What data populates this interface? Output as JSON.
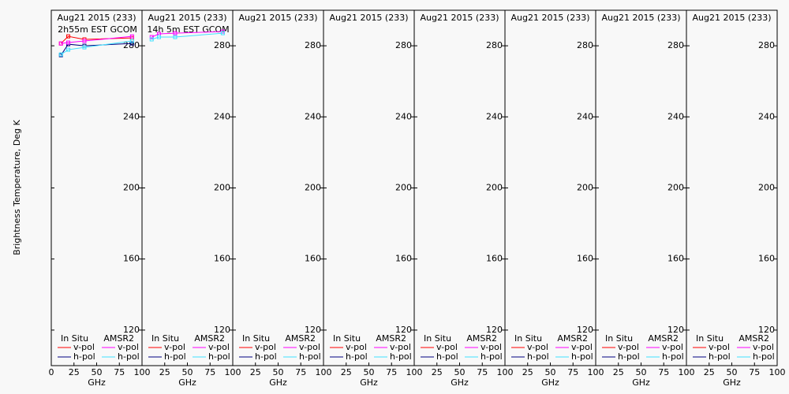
{
  "y_label": "Brightness Temperature, Deg K",
  "chart_data": [
    {
      "type": "line",
      "title": "Aug21 2015 (233)",
      "subtitle": "2h55m  EST GCOM",
      "x_label": "GHz",
      "x": [
        10.65,
        18.7,
        36.5,
        89.0
      ],
      "legend_groups": [
        "In Situ",
        "AMSR2"
      ],
      "series": [
        {
          "name": "v-pol",
          "group": 0,
          "color": "#ff0000",
          "values": [
            281.3,
            285.3,
            283.6,
            284.4
          ]
        },
        {
          "name": "h-pol",
          "group": 0,
          "color": "#000080",
          "values": [
            274.7,
            280.9,
            280.0,
            281.3
          ]
        },
        {
          "name": "v-pol",
          "group": 1,
          "color": "#ff00ff",
          "values": [
            281.3,
            281.8,
            282.7,
            285.3
          ]
        },
        {
          "name": "h-pol",
          "group": 1,
          "color": "#40e0ff",
          "values": [
            275.1,
            277.8,
            279.1,
            282.7
          ]
        }
      ],
      "xlim": [
        0,
        100
      ],
      "xticks": [
        0,
        25,
        50,
        75,
        100
      ],
      "ylim": [
        100,
        300
      ],
      "yticks": [
        120,
        160,
        200,
        240,
        280
      ]
    },
    {
      "type": "line",
      "title": "Aug21 2015 (233)",
      "subtitle": "14h 5m  EST GCOM",
      "x_label": "GHz",
      "x": [
        10.65,
        18.7,
        36.5,
        89.0
      ],
      "legend_groups": [
        "In Situ",
        "AMSR2"
      ],
      "series": [
        {
          "name": "v-pol",
          "group": 0,
          "color": "#ff0000",
          "values": [
            null,
            null,
            null,
            null
          ]
        },
        {
          "name": "h-pol",
          "group": 0,
          "color": "#000080",
          "values": [
            null,
            null,
            null,
            null
          ]
        },
        {
          "name": "v-pol",
          "group": 1,
          "color": "#ff00ff",
          "values": [
            284.9,
            286.7,
            287.1,
            288.0
          ]
        },
        {
          "name": "h-pol",
          "group": 1,
          "color": "#40e0ff",
          "values": [
            283.6,
            284.9,
            284.9,
            287.1
          ]
        }
      ],
      "xlim": [
        0,
        100
      ],
      "xticks": [
        25,
        50,
        75,
        100
      ],
      "ylim": [
        100,
        300
      ],
      "yticks": [
        120,
        160,
        200,
        240,
        280
      ]
    },
    {
      "type": "line",
      "title": "Aug21 2015 (233)",
      "x_label": "GHz",
      "x": [],
      "legend_groups": [
        "In Situ",
        "AMSR2"
      ],
      "series": [
        {
          "name": "v-pol",
          "group": 0,
          "color": "#ff0000",
          "values": []
        },
        {
          "name": "h-pol",
          "group": 0,
          "color": "#000080",
          "values": []
        },
        {
          "name": "v-pol",
          "group": 1,
          "color": "#ff00ff",
          "values": []
        },
        {
          "name": "h-pol",
          "group": 1,
          "color": "#40e0ff",
          "values": []
        }
      ],
      "xlim": [
        0,
        100
      ],
      "xticks": [
        25,
        50,
        75,
        100
      ],
      "ylim": [
        100,
        300
      ],
      "yticks": [
        120,
        160,
        200,
        240,
        280
      ]
    },
    {
      "type": "line",
      "title": "Aug21 2015 (233)",
      "x_label": "GHz",
      "x": [],
      "legend_groups": [
        "In Situ",
        "AMSR2"
      ],
      "series": [
        {
          "name": "v-pol",
          "group": 0,
          "color": "#ff0000",
          "values": []
        },
        {
          "name": "h-pol",
          "group": 0,
          "color": "#000080",
          "values": []
        },
        {
          "name": "v-pol",
          "group": 1,
          "color": "#ff00ff",
          "values": []
        },
        {
          "name": "h-pol",
          "group": 1,
          "color": "#40e0ff",
          "values": []
        }
      ],
      "xlim": [
        0,
        100
      ],
      "xticks": [
        25,
        50,
        75,
        100
      ],
      "ylim": [
        100,
        300
      ],
      "yticks": [
        120,
        160,
        200,
        240,
        280
      ]
    },
    {
      "type": "line",
      "title": "Aug21 2015 (233)",
      "x_label": "GHz",
      "x": [],
      "legend_groups": [
        "In Situ",
        "AMSR2"
      ],
      "series": [
        {
          "name": "v-pol",
          "group": 0,
          "color": "#ff0000",
          "values": []
        },
        {
          "name": "h-pol",
          "group": 0,
          "color": "#000080",
          "values": []
        },
        {
          "name": "v-pol",
          "group": 1,
          "color": "#ff00ff",
          "values": []
        },
        {
          "name": "h-pol",
          "group": 1,
          "color": "#40e0ff",
          "values": []
        }
      ],
      "xlim": [
        0,
        100
      ],
      "xticks": [
        25,
        50,
        75,
        100
      ],
      "ylim": [
        100,
        300
      ],
      "yticks": [
        120,
        160,
        200,
        240,
        280
      ]
    },
    {
      "type": "line",
      "title": "Aug21 2015 (233)",
      "x_label": "GHz",
      "x": [],
      "legend_groups": [
        "In Situ",
        "AMSR2"
      ],
      "series": [
        {
          "name": "v-pol",
          "group": 0,
          "color": "#ff0000",
          "values": []
        },
        {
          "name": "h-pol",
          "group": 0,
          "color": "#000080",
          "values": []
        },
        {
          "name": "v-pol",
          "group": 1,
          "color": "#ff00ff",
          "values": []
        },
        {
          "name": "h-pol",
          "group": 1,
          "color": "#40e0ff",
          "values": []
        }
      ],
      "xlim": [
        0,
        100
      ],
      "xticks": [
        25,
        50,
        75,
        100
      ],
      "ylim": [
        100,
        300
      ],
      "yticks": [
        120,
        160,
        200,
        240,
        280
      ]
    },
    {
      "type": "line",
      "title": "Aug21 2015 (233)",
      "x_label": "GHz",
      "x": [],
      "legend_groups": [
        "In Situ",
        "AMSR2"
      ],
      "series": [
        {
          "name": "v-pol",
          "group": 0,
          "color": "#ff0000",
          "values": []
        },
        {
          "name": "h-pol",
          "group": 0,
          "color": "#000080",
          "values": []
        },
        {
          "name": "v-pol",
          "group": 1,
          "color": "#ff00ff",
          "values": []
        },
        {
          "name": "h-pol",
          "group": 1,
          "color": "#40e0ff",
          "values": []
        }
      ],
      "xlim": [
        0,
        100
      ],
      "xticks": [
        25,
        50,
        75,
        100
      ],
      "ylim": [
        100,
        300
      ],
      "yticks": [
        120,
        160,
        200,
        240,
        280
      ]
    },
    {
      "type": "line",
      "title": "Aug21 2015 (233)",
      "x_label": "GHz",
      "x": [],
      "legend_groups": [
        "In Situ",
        "AMSR2"
      ],
      "series": [
        {
          "name": "v-pol",
          "group": 0,
          "color": "#ff0000",
          "values": []
        },
        {
          "name": "h-pol",
          "group": 0,
          "color": "#000080",
          "values": []
        },
        {
          "name": "v-pol",
          "group": 1,
          "color": "#ff00ff",
          "values": []
        },
        {
          "name": "h-pol",
          "group": 1,
          "color": "#40e0ff",
          "values": []
        }
      ],
      "xlim": [
        0,
        100
      ],
      "xticks": [
        25,
        50,
        75,
        100
      ],
      "ylim": [
        100,
        300
      ],
      "yticks": [
        120,
        160,
        200,
        240,
        280
      ]
    }
  ]
}
